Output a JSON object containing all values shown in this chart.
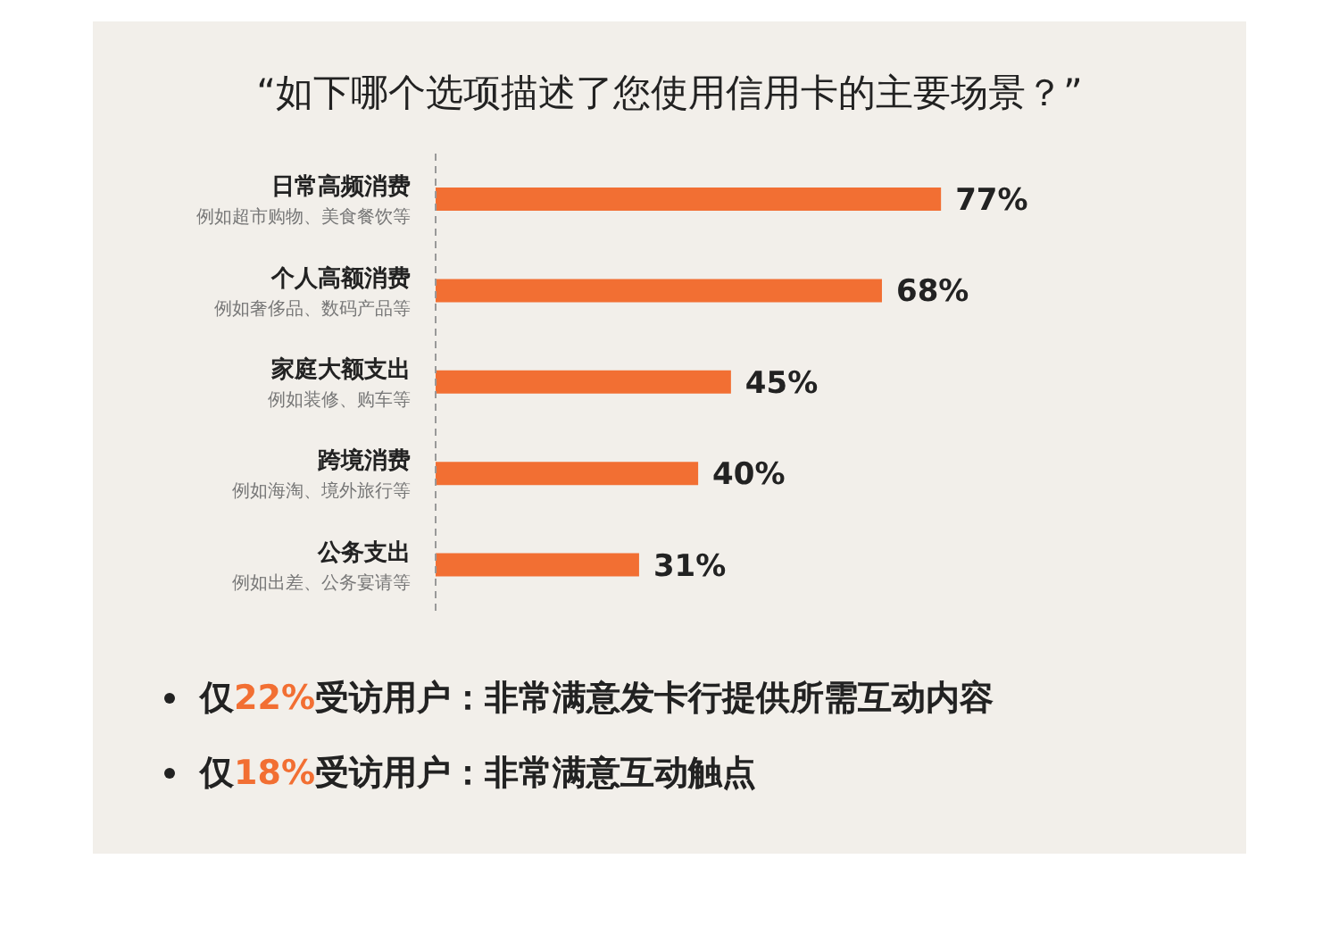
{
  "chart_data": {
    "type": "bar",
    "orientation": "horizontal",
    "title": "“如下哪个选项描述了您使用信用卡的主要场景？”",
    "categories": [
      "日常高频消费",
      "个人高额消费",
      "家庭大额支出",
      "跨境消费",
      "公务支出"
    ],
    "values": [
      77,
      68,
      45,
      40,
      31
    ],
    "value_labels": [
      "77%",
      "68%",
      "45%",
      "40%",
      "31%"
    ],
    "color": "#f26f33",
    "annotations": [
      "例如超市购物、美食餐饮等",
      "例如奢侈品、数码产品等",
      "例如装修、购车等",
      "例如海淘、境外旅行等",
      "例如出差、公务宴请等",
      "仅22%受访用户：非常满意发卡行提供所需互动内容",
      "仅18%受访用户：非常满意互动触点"
    ]
  }
}
